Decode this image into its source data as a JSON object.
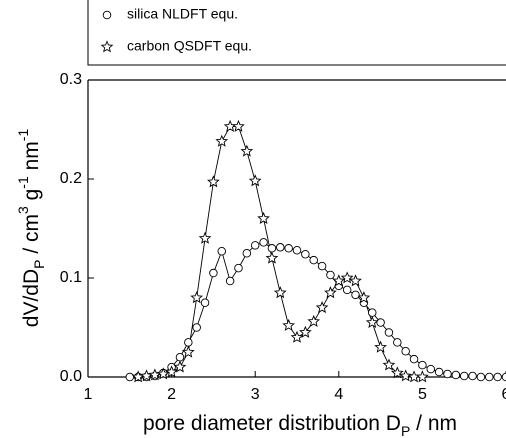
{
  "chart_data": {
    "type": "line",
    "xlabel": [
      {
        "text": "pore diameter distribution D"
      },
      {
        "text": "P",
        "shift": "sub"
      },
      {
        "text": " / nm"
      }
    ],
    "ylabel": [
      {
        "text": "dV/dD"
      },
      {
        "text": "P",
        "shift": "sub"
      },
      {
        "text": " / cm"
      },
      {
        "text": "3",
        "shift": "super"
      },
      {
        "text": " g"
      },
      {
        "text": "-1",
        "shift": "super"
      },
      {
        "text": " nm"
      },
      {
        "text": "-1",
        "shift": "super"
      }
    ],
    "xlim": [
      1,
      6
    ],
    "xticks": [
      1,
      2,
      3,
      4,
      5,
      6
    ],
    "ylim": [
      0,
      0.3
    ],
    "yticks": [
      {
        "value": 0,
        "label": "0.0"
      },
      0.1,
      0.2,
      0.3
    ],
    "legend": "top",
    "series": [
      {
        "name": "silica NLDFT equ.",
        "marker": "circle",
        "color": "#000000",
        "x": [
          1.5,
          1.6,
          1.7,
          1.8,
          1.9,
          2.0,
          2.1,
          2.2,
          2.3,
          2.4,
          2.5,
          2.6,
          2.7,
          2.8,
          2.9,
          3.0,
          3.1,
          3.2,
          3.3,
          3.4,
          3.5,
          3.6,
          3.7,
          3.8,
          3.9,
          4.0,
          4.1,
          4.2,
          4.3,
          4.4,
          4.5,
          4.6,
          4.7,
          4.8,
          4.9,
          5.0,
          5.1,
          5.2,
          5.3,
          5.4,
          5.5,
          5.6,
          5.7,
          5.8,
          5.9,
          6.0
        ],
        "values": [
          0,
          0,
          0,
          0.001,
          0.004,
          0.01,
          0.02,
          0.035,
          0.05,
          0.075,
          0.105,
          0.127,
          0.097,
          0.11,
          0.125,
          0.133,
          0.136,
          0.13,
          0.131,
          0.13,
          0.128,
          0.124,
          0.118,
          0.112,
          0.103,
          0.092,
          0.088,
          0.083,
          0.075,
          0.065,
          0.055,
          0.045,
          0.035,
          0.026,
          0.018,
          0.012,
          0.008,
          0.005,
          0.003,
          0.002,
          0.001,
          0.001,
          0,
          0,
          0,
          0
        ]
      },
      {
        "name": "carbon QSDFT equ.",
        "marker": "star",
        "color": "#000000",
        "x": [
          1.6,
          1.7,
          1.8,
          1.9,
          2.0,
          2.1,
          2.2,
          2.3,
          2.4,
          2.5,
          2.6,
          2.7,
          2.8,
          2.9,
          3.0,
          3.1,
          3.2,
          3.3,
          3.4,
          3.5,
          3.6,
          3.7,
          3.8,
          3.9,
          4.0,
          4.1,
          4.2,
          4.3,
          4.4,
          4.5,
          4.6,
          4.7,
          4.8,
          4.9,
          5.0
        ],
        "values": [
          0,
          0.001,
          0.002,
          0.003,
          0.005,
          0.01,
          0.025,
          0.08,
          0.14,
          0.197,
          0.238,
          0.253,
          0.253,
          0.228,
          0.198,
          0.16,
          0.12,
          0.085,
          0.052,
          0.04,
          0.045,
          0.056,
          0.07,
          0.085,
          0.097,
          0.1,
          0.097,
          0.08,
          0.055,
          0.03,
          0.012,
          0.004,
          0.001,
          0,
          0
        ]
      }
    ]
  }
}
